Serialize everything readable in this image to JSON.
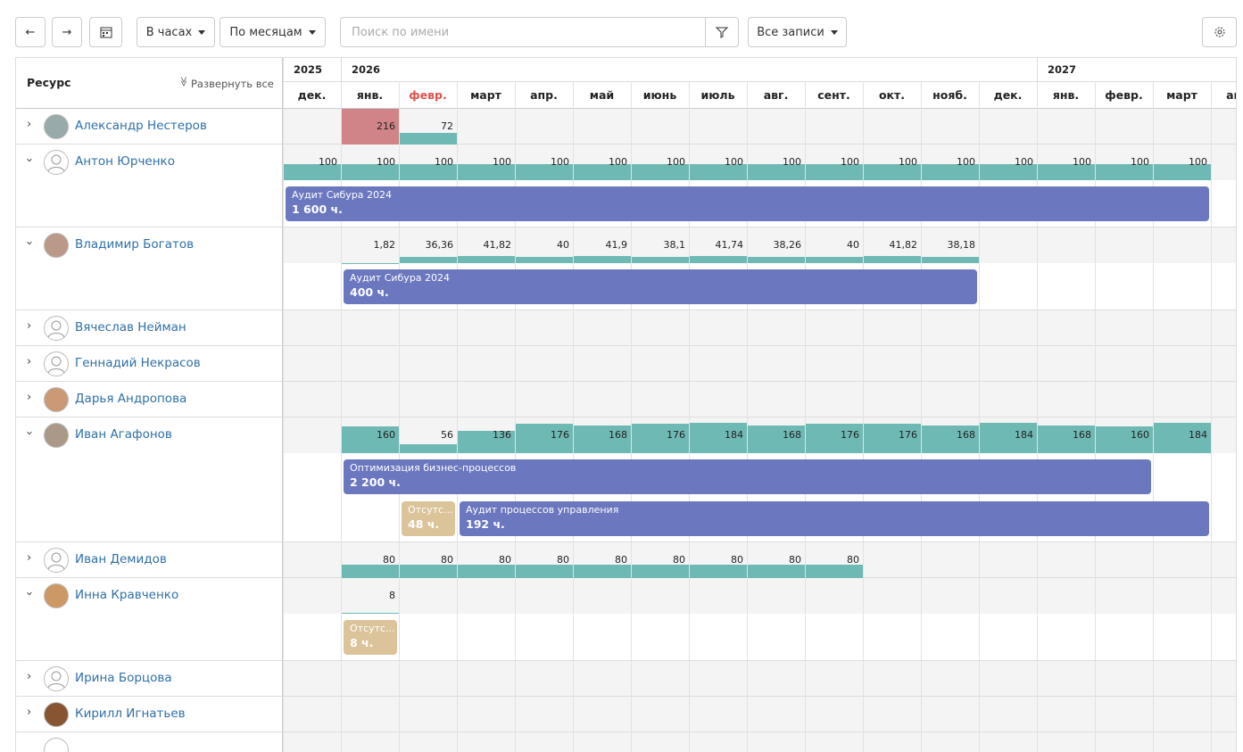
{
  "toolbar": {
    "units": "В часах",
    "period": "По месяцам",
    "search_placeholder": "Поиск по имени",
    "filter": "Все записи"
  },
  "header": {
    "resource": "Ресурс",
    "expand_all": "Развернуть все",
    "years": [
      "2025",
      "2026",
      "2027"
    ],
    "months": [
      "дек.",
      "янв.",
      "февр.",
      "март",
      "апр.",
      "май",
      "июнь",
      "июль",
      "авг.",
      "сент.",
      "окт.",
      "нояб.",
      "дек.",
      "янв.",
      "февр.",
      "март",
      "апр."
    ]
  },
  "rows": [
    {
      "name": "Александр Нестеров",
      "loads": [
        null,
        {
          "value": 216,
          "color": "#d08488"
        },
        72
      ]
    },
    {
      "name": "Антон Юрченко",
      "loads": [
        100,
        100,
        100,
        100,
        100,
        100,
        100,
        100,
        100,
        100,
        100,
        100,
        100,
        100,
        100,
        100
      ],
      "tasks": [
        {
          "title": "Аудит Сибура 2024",
          "hours": "1 600 ч.",
          "color": "#6b77bf"
        }
      ]
    },
    {
      "name": "Владимир Богатов",
      "loads": [
        null,
        {
          "value": 1.82,
          "label": "1,82"
        },
        {
          "value": 36.36,
          "label": "36,36"
        },
        {
          "value": 41.82,
          "label": "41,82"
        },
        40,
        {
          "value": 41.9,
          "label": "41,9"
        },
        {
          "value": 38.1,
          "label": "38,1"
        },
        {
          "value": 41.74,
          "label": "41,74"
        },
        {
          "value": 38.26,
          "label": "38,26"
        },
        40,
        {
          "value": 41.82,
          "label": "41,82"
        },
        {
          "value": 38.18,
          "label": "38,18"
        }
      ],
      "tasks": [
        {
          "title": "Аудит Сибура 2024",
          "hours": "400 ч.",
          "color": "#6b77bf"
        }
      ]
    },
    {
      "name": "Вячеслав Нейман"
    },
    {
      "name": "Геннадий Некрасов"
    },
    {
      "name": "Дарья Андропова"
    },
    {
      "name": "Иван Агафонов",
      "loads": [
        null,
        160,
        56,
        136,
        176,
        168,
        176,
        184,
        168,
        176,
        176,
        168,
        184,
        168,
        160,
        184
      ],
      "tasks": [
        {
          "title": "Оптимизация бизнес-процессов",
          "hours": "2 200 ч.",
          "color": "#6b77bf"
        },
        {
          "title": "Отсутс...",
          "hours": "48 ч.",
          "color": "#dcc49a"
        },
        {
          "title": "Аудит процессов управления",
          "hours": "192 ч.",
          "color": "#6b77bf"
        }
      ]
    },
    {
      "name": "Иван Демидов",
      "loads": [
        null,
        80,
        80,
        80,
        80,
        80,
        80,
        80,
        80,
        80
      ]
    },
    {
      "name": "Инна Кравченко",
      "loads": [
        null,
        8
      ],
      "tasks": [
        {
          "title": "Отсутс...",
          "hours": "8 ч.",
          "color": "#dcc49a"
        }
      ]
    },
    {
      "name": "Ирина Борцова"
    },
    {
      "name": "Кирилл Игнатьев"
    }
  ]
}
